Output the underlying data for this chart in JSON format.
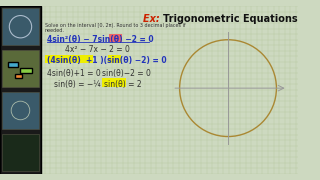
{
  "title_ex": "Ex: ",
  "title_main": "Trigonometric Equations",
  "subtitle1": "Solve on the interval [0, 2π). Round to 3 decimal places if",
  "subtitle2": "needed.",
  "line1a": "4sin²(θ) − 7sin(θ) ",
  "line1b": "−2",
  "line1c": " = 0",
  "line2": "4x² − 7x − 2 = 0",
  "line3_p1": "(4sin(θ)",
  "line3_p2": " +1 ",
  "line3_p3": ")(sin(θ)",
  "line3_p4": "−2",
  "line3_p5": ") = 0",
  "line4a": "4sin(θ)+1 = 0",
  "line4b": "sin(θ)−2 = 0",
  "line5a": "sin(θ) = −¼",
  "line5b": "sin(θ) = 2",
  "bg_color": "#cdd9c0",
  "grid_color": "#b5c8a0",
  "text_color": "#1a1a80",
  "title_ex_color": "#cc2200",
  "title_main_color": "#111111",
  "highlight_yellow": "#eeee00",
  "highlight_pink": "#ee6666",
  "blue_color": "#2233bb",
  "circle_color": "#aa8833",
  "axis_color": "#999999",
  "sidebar_color": "#1a1a1a",
  "thumb_bg": "#444433"
}
